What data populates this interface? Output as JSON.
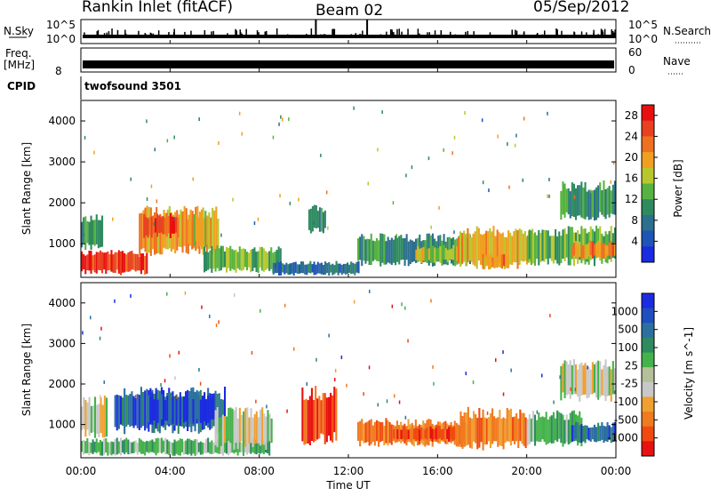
{
  "header": {
    "station": "Rankin Inlet (fitACF)",
    "beam": "Beam 02",
    "date": "05/Sep/2012"
  },
  "panels": {
    "nsky_label": "N.Sky",
    "nsky_ticks": [
      "10^5",
      "10^0"
    ],
    "nsearch_label": "N.Search",
    "nsearch_ticks": [
      "10^5",
      "10^0"
    ],
    "freq_label_1": "Freq.",
    "freq_label_2": "[MHz]",
    "freq_ticks": [
      "8"
    ],
    "nave_label": "Nave",
    "nave_ticks": [
      "60",
      "0"
    ],
    "cpid_label": "CPID",
    "cpid_value": "twofsound 3501"
  },
  "colors": {
    "power": [
      "#1b2be0",
      "#1f55b7",
      "#2d6f8f",
      "#2f8a5f",
      "#57b33f",
      "#b9c72f",
      "#f0a020",
      "#ee7020",
      "#e84020",
      "#e80f10"
    ],
    "velocity": [
      "#1b2be0",
      "#1e4ec0",
      "#2c70a0",
      "#2f8a5f",
      "#44b24a",
      "#b5c09a",
      "#c8c8c8",
      "#f0a030",
      "#f07a20",
      "#f04a10",
      "#e81010"
    ],
    "trace": "#000000"
  },
  "chart_data": [
    {
      "type": "heatmap",
      "name": "power",
      "ylabel": "Slant Range [km]",
      "xlim": [
        "00:00",
        "24:00"
      ],
      "ylim": [
        180,
        4500
      ],
      "yticks": [
        1000,
        2000,
        3000,
        4000
      ],
      "colorbar_label": "Power [dB]",
      "colorbar_ticks": [
        4,
        8,
        12,
        16,
        20,
        24,
        28
      ],
      "colorbar_range": [
        0,
        30
      ],
      "echo_regions": [
        {
          "t0": 0.0,
          "t1": 3.0,
          "r0": 200,
          "r1": 900,
          "level": 28
        },
        {
          "t0": 0.0,
          "t1": 1.0,
          "r0": 800,
          "r1": 1800,
          "level": 10
        },
        {
          "t0": 2.6,
          "t1": 6.2,
          "r0": 600,
          "r1": 2000,
          "level": 20
        },
        {
          "t0": 2.8,
          "t1": 4.4,
          "r0": 1100,
          "r1": 1800,
          "level": 26
        },
        {
          "t0": 4.8,
          "t1": 5.8,
          "r0": 800,
          "r1": 1900,
          "level": 18
        },
        {
          "t0": 5.5,
          "t1": 9.0,
          "r0": 250,
          "r1": 1000,
          "level": 14
        },
        {
          "t0": 8.6,
          "t1": 12.5,
          "r0": 200,
          "r1": 600,
          "level": 6
        },
        {
          "t0": 10.2,
          "t1": 11.0,
          "r0": 1200,
          "r1": 2000,
          "level": 9
        },
        {
          "t0": 12.4,
          "t1": 17.5,
          "r0": 400,
          "r1": 1300,
          "level": 10
        },
        {
          "t0": 15.0,
          "t1": 17.0,
          "r0": 500,
          "r1": 1000,
          "level": 16
        },
        {
          "t0": 16.9,
          "t1": 20.3,
          "r0": 300,
          "r1": 1500,
          "level": 19
        },
        {
          "t0": 18.0,
          "t1": 19.2,
          "r0": 350,
          "r1": 800,
          "level": 22
        },
        {
          "t0": 20.0,
          "t1": 24.0,
          "r0": 400,
          "r1": 1500,
          "level": 13
        },
        {
          "t0": 22.0,
          "t1": 24.0,
          "r0": 600,
          "r1": 1100,
          "level": 22
        },
        {
          "t0": 21.5,
          "t1": 24.0,
          "r0": 1500,
          "r1": 2600,
          "level": 10
        }
      ]
    },
    {
      "type": "heatmap",
      "name": "velocity",
      "ylabel": "Slant Range [km]",
      "xlabel": "Time UT",
      "xlim": [
        "00:00",
        "24:00"
      ],
      "xticks": [
        "00:00",
        "04:00",
        "08:00",
        "12:00",
        "16:00",
        "20:00",
        "00:00"
      ],
      "ylim": [
        180,
        4500
      ],
      "yticks": [
        1000,
        2000,
        3000,
        4000
      ],
      "colorbar_label": "Velocity [m s^-1]",
      "colorbar_ticks": [
        1000,
        500,
        100,
        25,
        -25,
        -100,
        -500,
        -1000
      ],
      "echo_regions": [
        {
          "t0": 0.0,
          "t1": 8.5,
          "r0": 200,
          "r1": 700,
          "level": 25
        },
        {
          "t0": 0.0,
          "t1": 1.2,
          "r0": 600,
          "r1": 1800,
          "level": 0
        },
        {
          "t0": 1.5,
          "t1": 6.5,
          "r0": 700,
          "r1": 2000,
          "level": 500
        },
        {
          "t0": 3.0,
          "t1": 6.0,
          "r0": 900,
          "r1": 1900,
          "level": 1000
        },
        {
          "t0": 6.0,
          "t1": 8.6,
          "r0": 300,
          "r1": 1500,
          "level": 0
        },
        {
          "t0": 9.9,
          "t1": 11.5,
          "r0": 400,
          "r1": 2100,
          "level": -500
        },
        {
          "t0": 12.4,
          "t1": 17.4,
          "r0": 400,
          "r1": 1200,
          "level": -100
        },
        {
          "t0": 14.0,
          "t1": 16.8,
          "r0": 550,
          "r1": 1000,
          "level": -500
        },
        {
          "t0": 17.0,
          "t1": 20.0,
          "r0": 300,
          "r1": 1500,
          "level": -100
        },
        {
          "t0": 20.0,
          "t1": 22.5,
          "r0": 400,
          "r1": 1400,
          "level": 25
        },
        {
          "t0": 22.0,
          "t1": 24.0,
          "r0": 500,
          "r1": 1100,
          "level": 500
        },
        {
          "t0": 21.5,
          "t1": 24.0,
          "r0": 1500,
          "r1": 2700,
          "level": 0
        }
      ]
    }
  ]
}
